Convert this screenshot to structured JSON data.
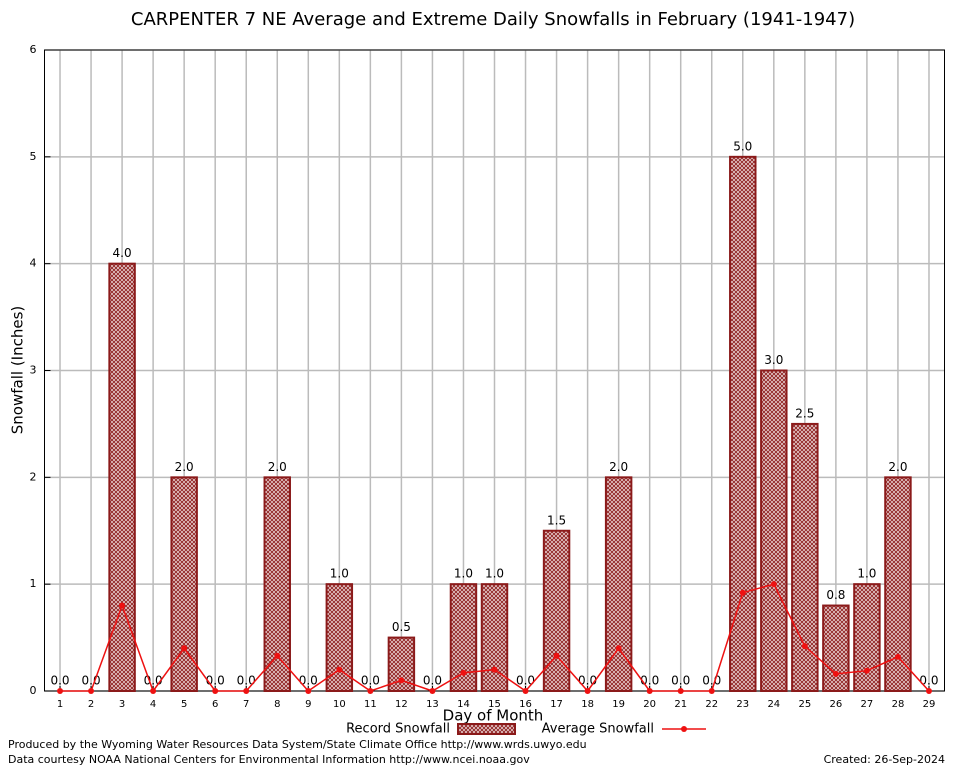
{
  "chart_data": {
    "type": "bar",
    "title": "CARPENTER 7 NE Average and Extreme Daily Snowfalls in February (1941-1947)",
    "x_label": "Day of Month",
    "y_label": "Snowfall (Inches)",
    "x": [
      1,
      2,
      3,
      4,
      5,
      6,
      7,
      8,
      9,
      10,
      11,
      12,
      13,
      14,
      15,
      16,
      17,
      18,
      19,
      20,
      21,
      22,
      23,
      24,
      25,
      26,
      27,
      28,
      29
    ],
    "xlim": [
      0.5,
      29.5
    ],
    "xticks": [
      1,
      2,
      3,
      4,
      5,
      6,
      7,
      8,
      9,
      10,
      11,
      12,
      13,
      14,
      15,
      16,
      17,
      18,
      19,
      20,
      21,
      22,
      23,
      24,
      25,
      26,
      27,
      28,
      29
    ],
    "ylim": [
      0,
      6
    ],
    "yticks": [
      0,
      1,
      2,
      3,
      4,
      5,
      6
    ],
    "grid": true,
    "legend": "bottom",
    "series": [
      {
        "name": "Record Snowfall",
        "type": "bar",
        "color": "#8b1a1a",
        "values": [
          0,
          0,
          4,
          0,
          2,
          0,
          0,
          2,
          0,
          1,
          0,
          0.5,
          0,
          1,
          1,
          0,
          1.5,
          0,
          2,
          0,
          0,
          0,
          5,
          3,
          2.5,
          0.8,
          1,
          2,
          0
        ],
        "value_labels": [
          "0.0",
          "0.0",
          "4.0",
          "0.0",
          "2.0",
          "0.0",
          "0.0",
          "2.0",
          "0.0",
          "1.0",
          "0.0",
          "0.5",
          "0.0",
          "1.0",
          "1.0",
          "0.0",
          "1.5",
          "0.0",
          "2.0",
          "0.0",
          "0.0",
          "0.0",
          "5.0",
          "3.0",
          "2.5",
          "0.8",
          "1.0",
          "2.0",
          "0.0"
        ]
      },
      {
        "name": "Average Snowfall",
        "type": "line",
        "color": "#ee1111",
        "values": [
          0,
          0,
          0.8,
          0,
          0.4,
          0,
          0,
          0.33,
          0,
          0.2,
          0,
          0.1,
          0,
          0.17,
          0.2,
          0,
          0.33,
          0,
          0.4,
          0,
          0,
          0,
          0.92,
          1.0,
          0.42,
          0.16,
          0.19,
          0.32,
          0
        ]
      }
    ],
    "footer_left": [
      "Produced by the Wyoming Water Resources Data System/State Climate Office http://www.wrds.uwyo.edu",
      "Data courtesy NOAA National Centers for Environmental Information http://www.ncei.noaa.gov"
    ],
    "footer_right": "Created:  26-Sep-2024"
  }
}
